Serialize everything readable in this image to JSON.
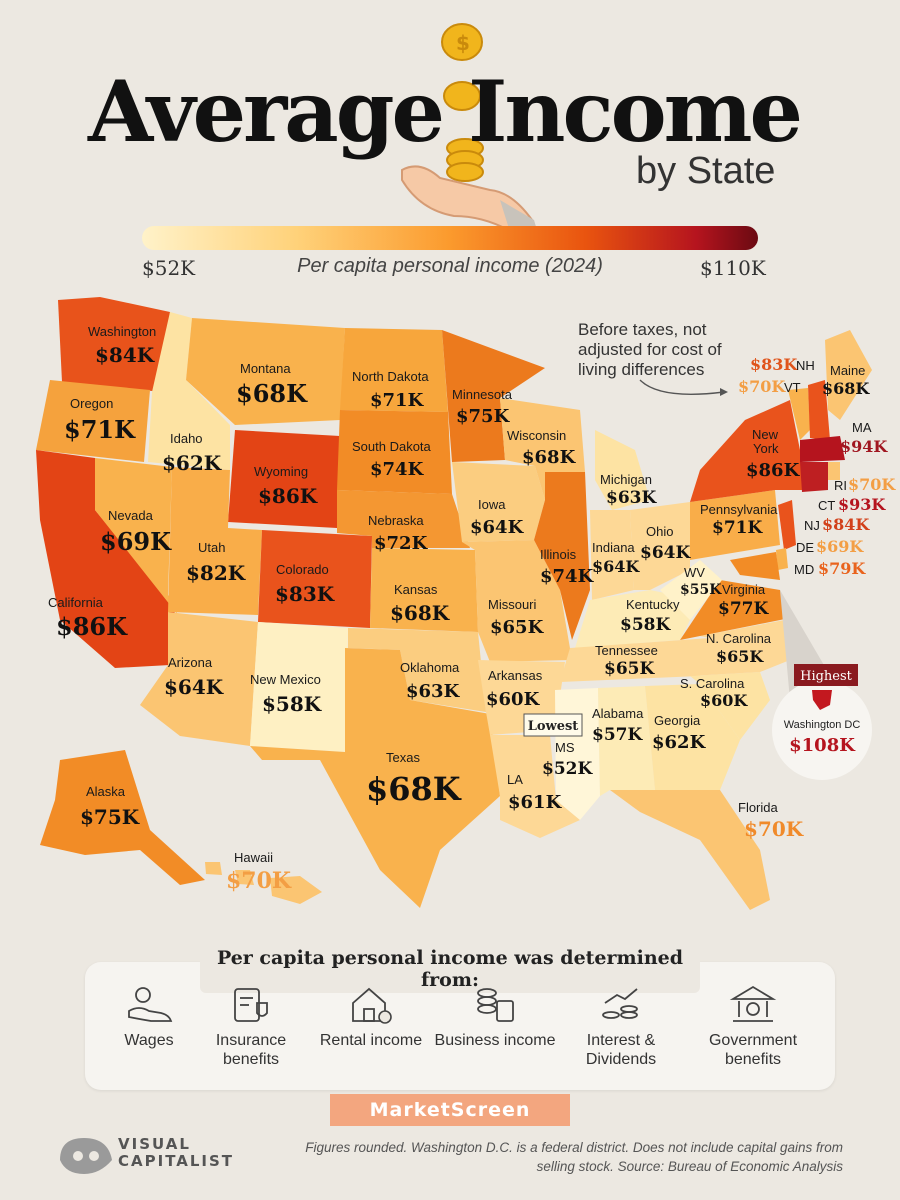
{
  "header": {
    "title": "Average Income",
    "subtitle": "by State"
  },
  "scale": {
    "min_label": "$52K",
    "max_label": "$110K",
    "title": "Per capita personal income (2024)",
    "min_value": 52,
    "max_value": 110,
    "colors": [
      "#fff2c9",
      "#ffd27a",
      "#fb9a2d",
      "#e9540f",
      "#b5141e",
      "#6b0a12"
    ]
  },
  "note": "Before taxes, not adjusted for cost of living differences",
  "states": [
    {
      "name": "Washington",
      "value": "$84K"
    },
    {
      "name": "Oregon",
      "value": "$71K"
    },
    {
      "name": "California",
      "value": "$86K"
    },
    {
      "name": "Nevada",
      "value": "$69K"
    },
    {
      "name": "Idaho",
      "value": "$62K"
    },
    {
      "name": "Montana",
      "value": "$68K"
    },
    {
      "name": "Wyoming",
      "value": "$86K"
    },
    {
      "name": "Utah",
      "value": "$82K"
    },
    {
      "name": "Colorado",
      "value": "$83K"
    },
    {
      "name": "Arizona",
      "value": "$64K"
    },
    {
      "name": "New Mexico",
      "value": "$58K"
    },
    {
      "name": "North Dakota",
      "value": "$71K"
    },
    {
      "name": "South Dakota",
      "value": "$74K"
    },
    {
      "name": "Nebraska",
      "value": "$72K"
    },
    {
      "name": "Kansas",
      "value": "$68K"
    },
    {
      "name": "Oklahoma",
      "value": "$63K"
    },
    {
      "name": "Texas",
      "value": "$68K"
    },
    {
      "name": "Minnesota",
      "value": "$75K"
    },
    {
      "name": "Iowa",
      "value": "$64K"
    },
    {
      "name": "Missouri",
      "value": "$65K"
    },
    {
      "name": "Arkansas",
      "value": "$60K"
    },
    {
      "name": "LA",
      "value": "$61K"
    },
    {
      "name": "Wisconsin",
      "value": "$68K"
    },
    {
      "name": "Illinois",
      "value": "$74K"
    },
    {
      "name": "Michigan",
      "value": "$63K"
    },
    {
      "name": "Indiana",
      "value": "$64K"
    },
    {
      "name": "Ohio",
      "value": "$64K"
    },
    {
      "name": "Kentucky",
      "value": "$58K"
    },
    {
      "name": "Tennessee",
      "value": "$65K"
    },
    {
      "name": "MS",
      "value": "$52K"
    },
    {
      "name": "Alabama",
      "value": "$57K"
    },
    {
      "name": "Georgia",
      "value": "$62K"
    },
    {
      "name": "Florida",
      "value": "$70K"
    },
    {
      "name": "S. Carolina",
      "value": "$60K"
    },
    {
      "name": "N. Carolina",
      "value": "$65K"
    },
    {
      "name": "Virginia",
      "value": "$77K"
    },
    {
      "name": "WV",
      "value": "$55K"
    },
    {
      "name": "Pennsylvania",
      "value": "$71K"
    },
    {
      "name": "New York",
      "value": "$86K"
    },
    {
      "name": "Maine",
      "value": "$68K"
    },
    {
      "name": "Alaska",
      "value": "$75K"
    },
    {
      "name": "Hawaii",
      "value": "$70K"
    }
  ],
  "northeast_labels": [
    {
      "name": "NH",
      "value": "$83K"
    },
    {
      "name": "VT",
      "value": "$70K"
    },
    {
      "name": "MA",
      "value": "$94K"
    },
    {
      "name": "RI",
      "value": "$70K"
    },
    {
      "name": "CT",
      "value": "$93K"
    },
    {
      "name": "NJ",
      "value": "$84K"
    },
    {
      "name": "DE",
      "value": "$69K"
    },
    {
      "name": "MD",
      "value": "$79K"
    }
  ],
  "callouts": {
    "lowest_label": "Lowest",
    "highest_label": "Highest",
    "dc_name": "Washington DC",
    "dc_value": "$108K"
  },
  "sources": {
    "title": "Per capita personal income was determined from:",
    "items": [
      {
        "label": "Wages",
        "icon": "hand-coin-icon"
      },
      {
        "label": "Insurance benefits",
        "icon": "clipboard-shield-icon"
      },
      {
        "label": "Rental income",
        "icon": "house-dollar-icon"
      },
      {
        "label": "Business income",
        "icon": "coins-calculator-icon"
      },
      {
        "label": "Interest & Dividends",
        "icon": "coin-stack-growth-icon"
      },
      {
        "label": "Government benefits",
        "icon": "bank-building-icon"
      }
    ]
  },
  "brand": "MarketScreen",
  "logo": {
    "text_line1": "VISUAL",
    "text_line2": "CAPITALIST"
  },
  "footnote": "Figures rounded. Washington D.C. is a federal district. Does not include capital gains from selling stock. Source: Bureau of Economic Analysis"
}
